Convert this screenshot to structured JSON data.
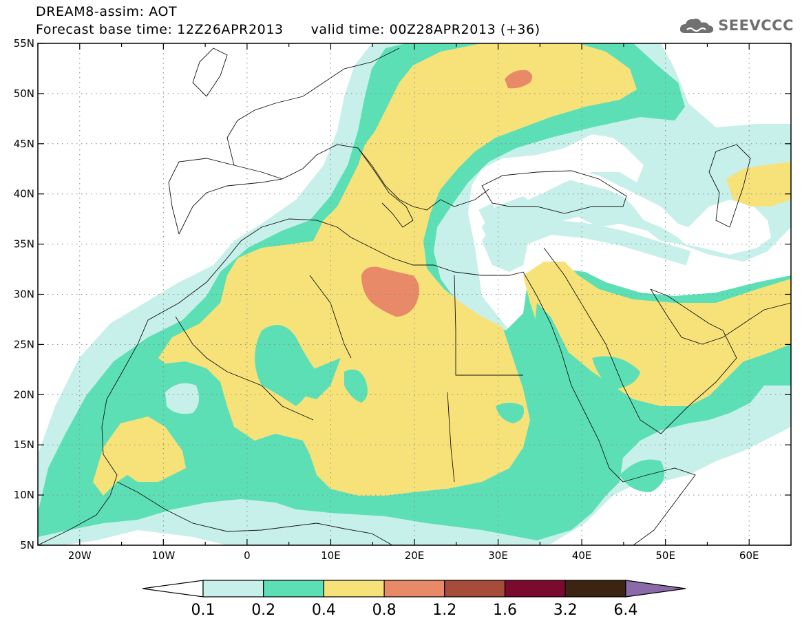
{
  "title": {
    "line1": "DREAM8-assim: AOT",
    "base_time_label": "Forecast base time: 12Z26APR2013",
    "valid_time_label": "valid time: 00Z28APR2013 (+36)"
  },
  "logo": {
    "text": "SEEVCCC",
    "icon": "cloud-logo-icon"
  },
  "map": {
    "lon_range": [
      -25,
      65
    ],
    "lat_range": [
      5,
      55
    ],
    "lon_ticks": [
      {
        "value": -20,
        "label": "20W"
      },
      {
        "value": -10,
        "label": "10W"
      },
      {
        "value": 0,
        "label": "0"
      },
      {
        "value": 10,
        "label": "10E"
      },
      {
        "value": 20,
        "label": "20E"
      },
      {
        "value": 30,
        "label": "30E"
      },
      {
        "value": 40,
        "label": "40E"
      },
      {
        "value": 50,
        "label": "50E"
      },
      {
        "value": 60,
        "label": "60E"
      }
    ],
    "lat_ticks": [
      {
        "value": 5,
        "label": "5N"
      },
      {
        "value": 10,
        "label": "10N"
      },
      {
        "value": 15,
        "label": "15N"
      },
      {
        "value": 20,
        "label": "20N"
      },
      {
        "value": 25,
        "label": "25N"
      },
      {
        "value": 30,
        "label": "30N"
      },
      {
        "value": 35,
        "label": "35N"
      },
      {
        "value": 40,
        "label": "40N"
      },
      {
        "value": 45,
        "label": "45N"
      },
      {
        "value": 50,
        "label": "50N"
      },
      {
        "value": 55,
        "label": "55N"
      }
    ],
    "grid": "dotted"
  },
  "colorbar": {
    "levels": [
      "0.1",
      "0.2",
      "0.4",
      "0.8",
      "1.2",
      "1.6",
      "3.2",
      "6.4"
    ],
    "colors": [
      "#ffffff",
      "#c6f0e9",
      "#5ddfb6",
      "#f7e27a",
      "#e88a67",
      "#a84c3a",
      "#7a0a2e",
      "#3d2412",
      "#8a6aa8"
    ]
  }
}
